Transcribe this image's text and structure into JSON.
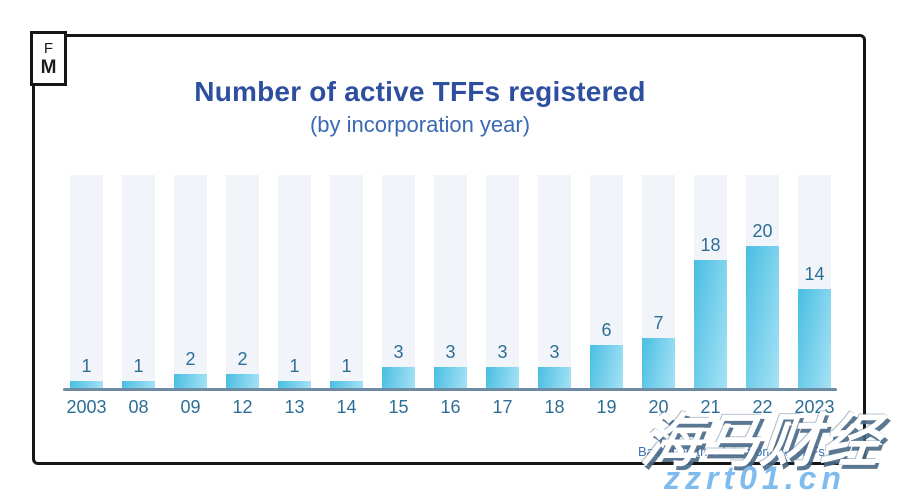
{
  "logo": {
    "line1": "F",
    "line2": "M"
  },
  "header": {
    "title": "Number of active TFFs registered",
    "subtitle": "(by incorporation year)"
  },
  "chart_data": {
    "type": "bar",
    "categories": [
      "2003",
      "08",
      "09",
      "12",
      "13",
      "14",
      "15",
      "16",
      "17",
      "18",
      "19",
      "20",
      "21",
      "22",
      "2023"
    ],
    "values": [
      1,
      1,
      2,
      2,
      1,
      1,
      3,
      3,
      3,
      3,
      6,
      7,
      18,
      20,
      14
    ],
    "title": "Number of active TFFs registered",
    "subtitle": "(by incorporation year)",
    "xlabel": "",
    "ylabel": "",
    "ylim": [
      0,
      30
    ],
    "grid": false,
    "legend": false,
    "value_labels_shown": true,
    "colors": {
      "bar_gradient_start": "#49bee2",
      "bar_gradient_end": "#a6e2f5",
      "band_background": "#f1f5fa",
      "axis_line": "#6d8ba3",
      "label_text": "#2d6e96",
      "title_text": "#2e4f9f",
      "subtitle_text": "#3a69b4"
    }
  },
  "footnote": {
    "text": "Based on the data from 84 TFFs"
  },
  "watermark": {
    "cjk_text": "海马财经",
    "url_text": "zzrt01.cn"
  }
}
